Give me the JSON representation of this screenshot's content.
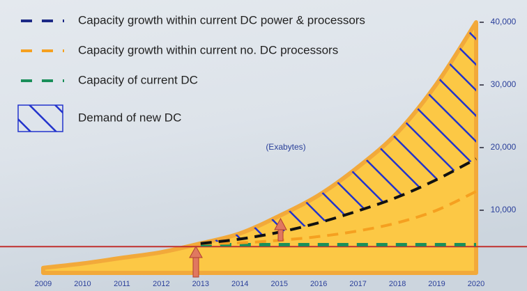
{
  "chart_data": {
    "type": "area",
    "unit_label": "(Exabytes)",
    "categories": [
      "2009",
      "2010",
      "2011",
      "2012",
      "2013",
      "2014",
      "2015",
      "2016",
      "2017",
      "2018",
      "2019",
      "2020"
    ],
    "area": {
      "color": "#fcc845",
      "edge_color": "#f2a93a",
      "values": [
        800,
        1500,
        2400,
        3300,
        4700,
        6300,
        9100,
        12400,
        16900,
        22400,
        30200,
        40000
      ]
    },
    "series": [
      {
        "name": "Capacity growth within current DC power & processors",
        "color": "#1c2a86",
        "line_color": "#111111",
        "values": [
          null,
          null,
          null,
          null,
          4700,
          5400,
          6500,
          8000,
          9900,
          12100,
          14900,
          18200
        ]
      },
      {
        "name": "Capacity growth within current no. DC processors",
        "color": "#f5a020",
        "values": [
          null,
          null,
          null,
          null,
          4700,
          4800,
          5200,
          5800,
          6700,
          8000,
          10000,
          13000
        ]
      },
      {
        "name": "Capacity of current DC",
        "color": "#1a8f5a",
        "values": [
          null,
          null,
          null,
          null,
          4500,
          4500,
          4500,
          4500,
          4500,
          4500,
          4500,
          4500
        ]
      },
      {
        "name": "Demand of new DC",
        "color": "#2233cc"
      }
    ],
    "reference_line": {
      "value": 4200,
      "color": "#c0302e"
    },
    "ylim": [
      0,
      40000
    ],
    "yticks": [
      {
        "value": 10000,
        "label": "10,000"
      },
      {
        "value": 20000,
        "label": "20,000"
      },
      {
        "value": 30000,
        "label": "30,000"
      },
      {
        "value": 40000,
        "label": "40,000"
      }
    ]
  }
}
